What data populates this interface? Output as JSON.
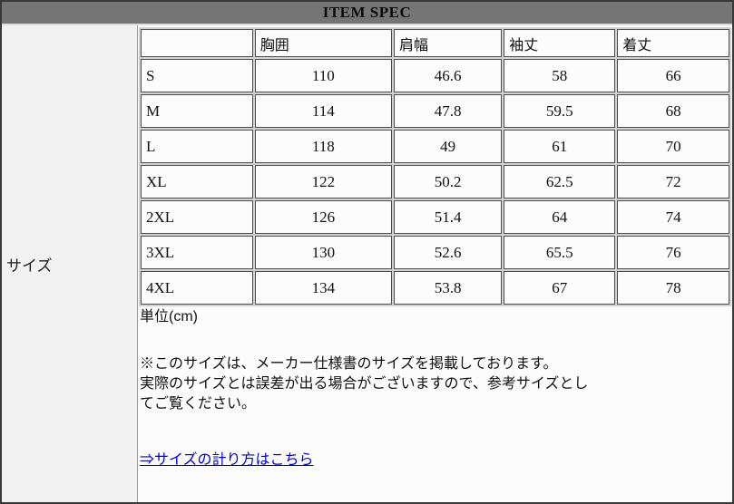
{
  "header": {
    "title": "ITEM SPEC"
  },
  "sidebar": {
    "label": "サイズ"
  },
  "size_table": {
    "columns": {
      "c0": "",
      "c1": "胸囲",
      "c2": "肩幅",
      "c3": "袖丈",
      "c4": "着丈"
    },
    "rows": [
      {
        "size": "S",
        "values": [
          "110",
          "46.6",
          "58",
          "66"
        ]
      },
      {
        "size": "M",
        "values": [
          "114",
          "47.8",
          "59.5",
          "68"
        ]
      },
      {
        "size": "L",
        "values": [
          "118",
          "49",
          "61",
          "70"
        ]
      },
      {
        "size": "XL",
        "values": [
          "122",
          "50.2",
          "62.5",
          "72"
        ]
      },
      {
        "size": "2XL",
        "values": [
          "126",
          "51.4",
          "64",
          "74"
        ]
      },
      {
        "size": "3XL",
        "values": [
          "130",
          "52.6",
          "65.5",
          "76"
        ]
      },
      {
        "size": "4XL",
        "values": [
          "134",
          "53.8",
          "67",
          "78"
        ]
      }
    ]
  },
  "notes": {
    "unit": "単位(cm)",
    "line1": "※このサイズは、メーカー仕様書のサイズを掲載しております。",
    "line2": "実際のサイズとは誤差が出る場合がございますので、参考サイズとし",
    "line3": "てご覧ください。",
    "link": "⇒サイズの計り方はこちら"
  },
  "colors": {
    "header_bg": "#757575",
    "border": "#383838",
    "cell_border": "#4d4d4d",
    "left_cell_bg": "#f2f2f2",
    "link": "#0000cc"
  }
}
